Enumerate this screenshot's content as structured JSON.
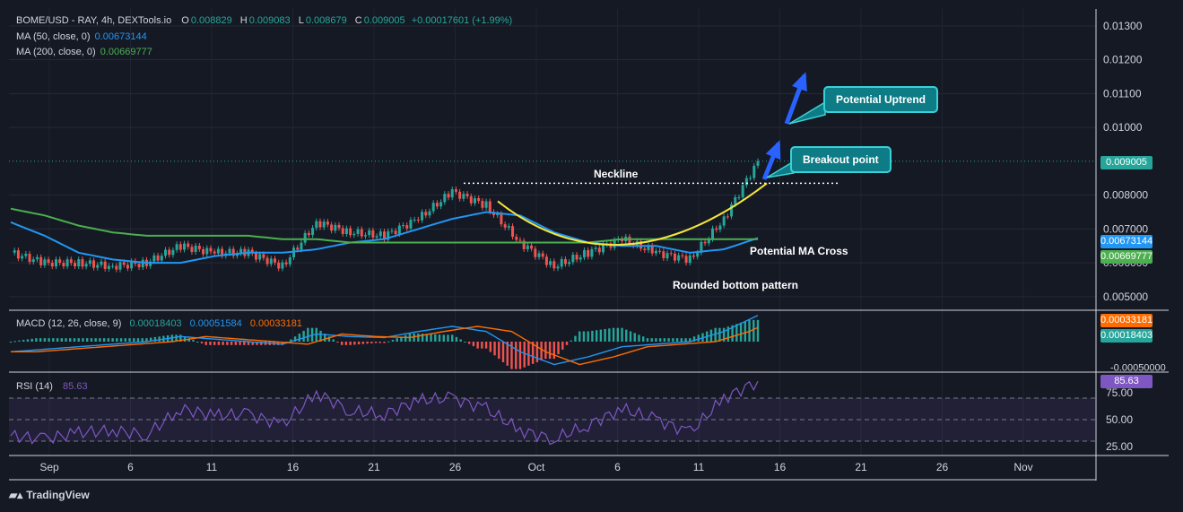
{
  "header": {
    "symbol": "BOME/USD - RAY, 4h, DEXTools.io",
    "o_label": "O",
    "o": "0.008829",
    "h_label": "H",
    "h": "0.009083",
    "l_label": "L",
    "l": "0.008679",
    "c_label": "C",
    "c": "0.009005",
    "change": "+0.00017601 (+1.99%)",
    "ma50_label": "MA (50, close, 0)",
    "ma50_value": "0.00673144",
    "ma200_label": "MA (200, close, 0)",
    "ma200_value": "0.00669777"
  },
  "macd": {
    "label": "MACD (12, 26, close, 9)",
    "v1": "0.00018403",
    "v2": "0.00051584",
    "v3": "0.00033181"
  },
  "rsi": {
    "label": "RSI (14)",
    "value": "85.63"
  },
  "price_tags": {
    "price": "0.009005",
    "ma50": "0.00673144",
    "ma200": "0.00669777",
    "macd_signal": "0.00033181",
    "macd_hist": "0.00018403",
    "rsi": "85.63"
  },
  "annotations": {
    "neckline": "Neckline",
    "breakout": "Breakout point",
    "uptrend": "Potential Uptrend",
    "ma_cross": "Potential MA Cross",
    "rounded": "Rounded bottom pattern"
  },
  "branding": {
    "logo_text": "TradingView"
  },
  "colors": {
    "up": "#26a69a",
    "down": "#ef5350",
    "ma50": "#2196f3",
    "ma200": "#4caf50",
    "rsi": "#7e57c2",
    "macd_line": "#2196f3",
    "signal_line": "#ff6d00",
    "curve": "#f5e63c",
    "arrow": "#2962ff"
  },
  "chart_data": {
    "type": "line",
    "title": "BOME/USD - RAY, 4h, DEXTools.io",
    "x_tick_labels": [
      "Sep",
      "6",
      "11",
      "16",
      "21",
      "26",
      "Oct",
      "6",
      "11",
      "16",
      "21",
      "26",
      "Nov"
    ],
    "price_axis_ticks": [
      "0.01300",
      "0.01200",
      "0.01100",
      "0.01000",
      "0.008000",
      "0.007000",
      "0.006000",
      "0.005000"
    ],
    "macd_axis_ticks": [
      "-0.00050000"
    ],
    "rsi_axis_ticks": [
      "75.00",
      "50.00",
      "25.00"
    ],
    "price_ylim": [
      0.0046,
      0.0135
    ],
    "neckline": 0.00835,
    "x": [
      "Sep 1",
      "Sep 3",
      "Sep 5",
      "Sep 7",
      "Sep 9",
      "Sep 11",
      "Sep 13",
      "Sep 15",
      "Sep 17",
      "Sep 19",
      "Sep 21",
      "Sep 23",
      "Sep 25",
      "Sep 27",
      "Sep 29",
      "Oct 1",
      "Oct 3",
      "Oct 5",
      "Oct 7",
      "Oct 9",
      "Oct 11",
      "Oct 13",
      "Oct 14"
    ],
    "series": [
      {
        "name": "BOME/USD",
        "values": [
          0.0063,
          0.006,
          0.006,
          0.0059,
          0.006,
          0.0065,
          0.0063,
          0.0063,
          0.0059,
          0.0072,
          0.0069,
          0.0068,
          0.0073,
          0.0081,
          0.0077,
          0.0066,
          0.0059,
          0.0063,
          0.0067,
          0.0063,
          0.0061,
          0.0073,
          0.009005
        ]
      },
      {
        "name": "MA (50, close, 0)",
        "values": [
          0.0072,
          0.0068,
          0.0063,
          0.0061,
          0.006,
          0.006,
          0.0062,
          0.0063,
          0.0063,
          0.0064,
          0.0066,
          0.0067,
          0.007,
          0.0073,
          0.0075,
          0.0074,
          0.0069,
          0.0066,
          0.0065,
          0.0065,
          0.0063,
          0.0064,
          0.00673144
        ]
      },
      {
        "name": "MA (200, close, 0)",
        "values": [
          0.0076,
          0.0074,
          0.0071,
          0.0069,
          0.0068,
          0.0068,
          0.0068,
          0.0068,
          0.0067,
          0.0067,
          0.0066,
          0.0066,
          0.0066,
          0.0066,
          0.0066,
          0.0066,
          0.0066,
          0.0066,
          0.0067,
          0.0067,
          0.0067,
          0.0067,
          0.00669777
        ]
      }
    ],
    "rsi_values": [
      35,
      32,
      38,
      40,
      36,
      60,
      54,
      55,
      45,
      75,
      58,
      55,
      68,
      70,
      60,
      40,
      32,
      45,
      60,
      50,
      38,
      70,
      85.63
    ],
    "macd_values": [
      -0.0002,
      -0.00015,
      -0.0001,
      -5e-05,
      0.0,
      0.0001,
      5e-05,
      0.0,
      -5e-05,
      0.00015,
      0.0001,
      8e-05,
      0.0002,
      0.0003,
      0.0002,
      -0.0002,
      -0.00045,
      -0.0003,
      -0.0001,
      -5e-05,
      0.0,
      0.0002,
      0.00051584
    ]
  }
}
